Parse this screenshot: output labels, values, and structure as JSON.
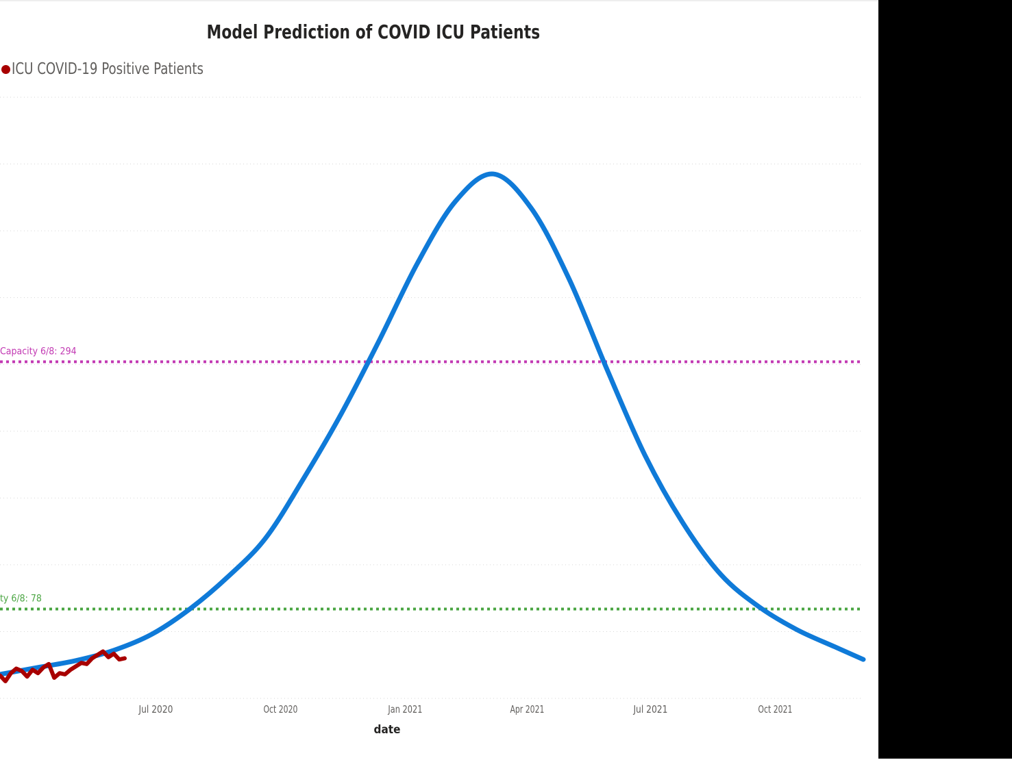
{
  "chart_data": {
    "type": "line",
    "title": "Model Prediction of COVID ICU Patients",
    "xlabel": "date",
    "ylabel": "",
    "x_tick_labels": [
      "Jul 2020",
      "Oct 2020",
      "Jan 2021",
      "Apr 2021",
      "Jul 2021",
      "Oct 2021"
    ],
    "x_tick_dates": [
      "2020-07-01",
      "2020-10-01",
      "2021-01-01",
      "2021-04-01",
      "2021-07-01",
      "2021-10-01"
    ],
    "xlim": [
      "2020-03-08",
      "2021-12-05"
    ],
    "ylim": [
      0,
      525
    ],
    "grid": true,
    "legend": {
      "position": "top-left"
    },
    "series": [
      {
        "name": "ICU COVID-19 Positive Patients",
        "color": "#a80000",
        "x": [
          "2020-03-08",
          "2020-03-12",
          "2020-03-16",
          "2020-03-20",
          "2020-03-24",
          "2020-03-28",
          "2020-04-01",
          "2020-04-05",
          "2020-04-09",
          "2020-04-13",
          "2020-04-17",
          "2020-04-21",
          "2020-04-25",
          "2020-04-29",
          "2020-05-03",
          "2020-05-07",
          "2020-05-11",
          "2020-05-15",
          "2020-05-19",
          "2020-05-23",
          "2020-05-27",
          "2020-05-31",
          "2020-06-04",
          "2020-06-08"
        ],
        "y": [
          20,
          15,
          22,
          26,
          24,
          19,
          25,
          22,
          27,
          30,
          18,
          22,
          21,
          25,
          28,
          31,
          30,
          35,
          38,
          41,
          36,
          39,
          34,
          35
        ]
      },
      {
        "name": "",
        "color": "#0f7ad8",
        "x": [
          "2020-03-08",
          "2020-04-05",
          "2020-05-03",
          "2020-05-31",
          "2020-06-28",
          "2020-07-26",
          "2020-08-23",
          "2020-09-20",
          "2020-10-18",
          "2020-11-15",
          "2020-12-13",
          "2021-01-10",
          "2021-02-07",
          "2021-03-07",
          "2021-04-04",
          "2021-05-02",
          "2021-05-30",
          "2021-06-27",
          "2021-07-25",
          "2021-08-22",
          "2021-09-19",
          "2021-10-17",
          "2021-11-14",
          "2021-12-05"
        ],
        "y": [
          21,
          27,
          33,
          42,
          56,
          78,
          106,
          140,
          192,
          249,
          313,
          380,
          434,
          458,
          428,
          366,
          287,
          212,
          153,
          108,
          80,
          60,
          45,
          34
        ]
      }
    ],
    "reference_lines": [
      {
        "label": "Capacity 6/8: 294",
        "value": 294,
        "color": "#c239b3"
      },
      {
        "label": "ty 6/8: 78",
        "value": 78,
        "color": "#4aa542"
      }
    ]
  }
}
